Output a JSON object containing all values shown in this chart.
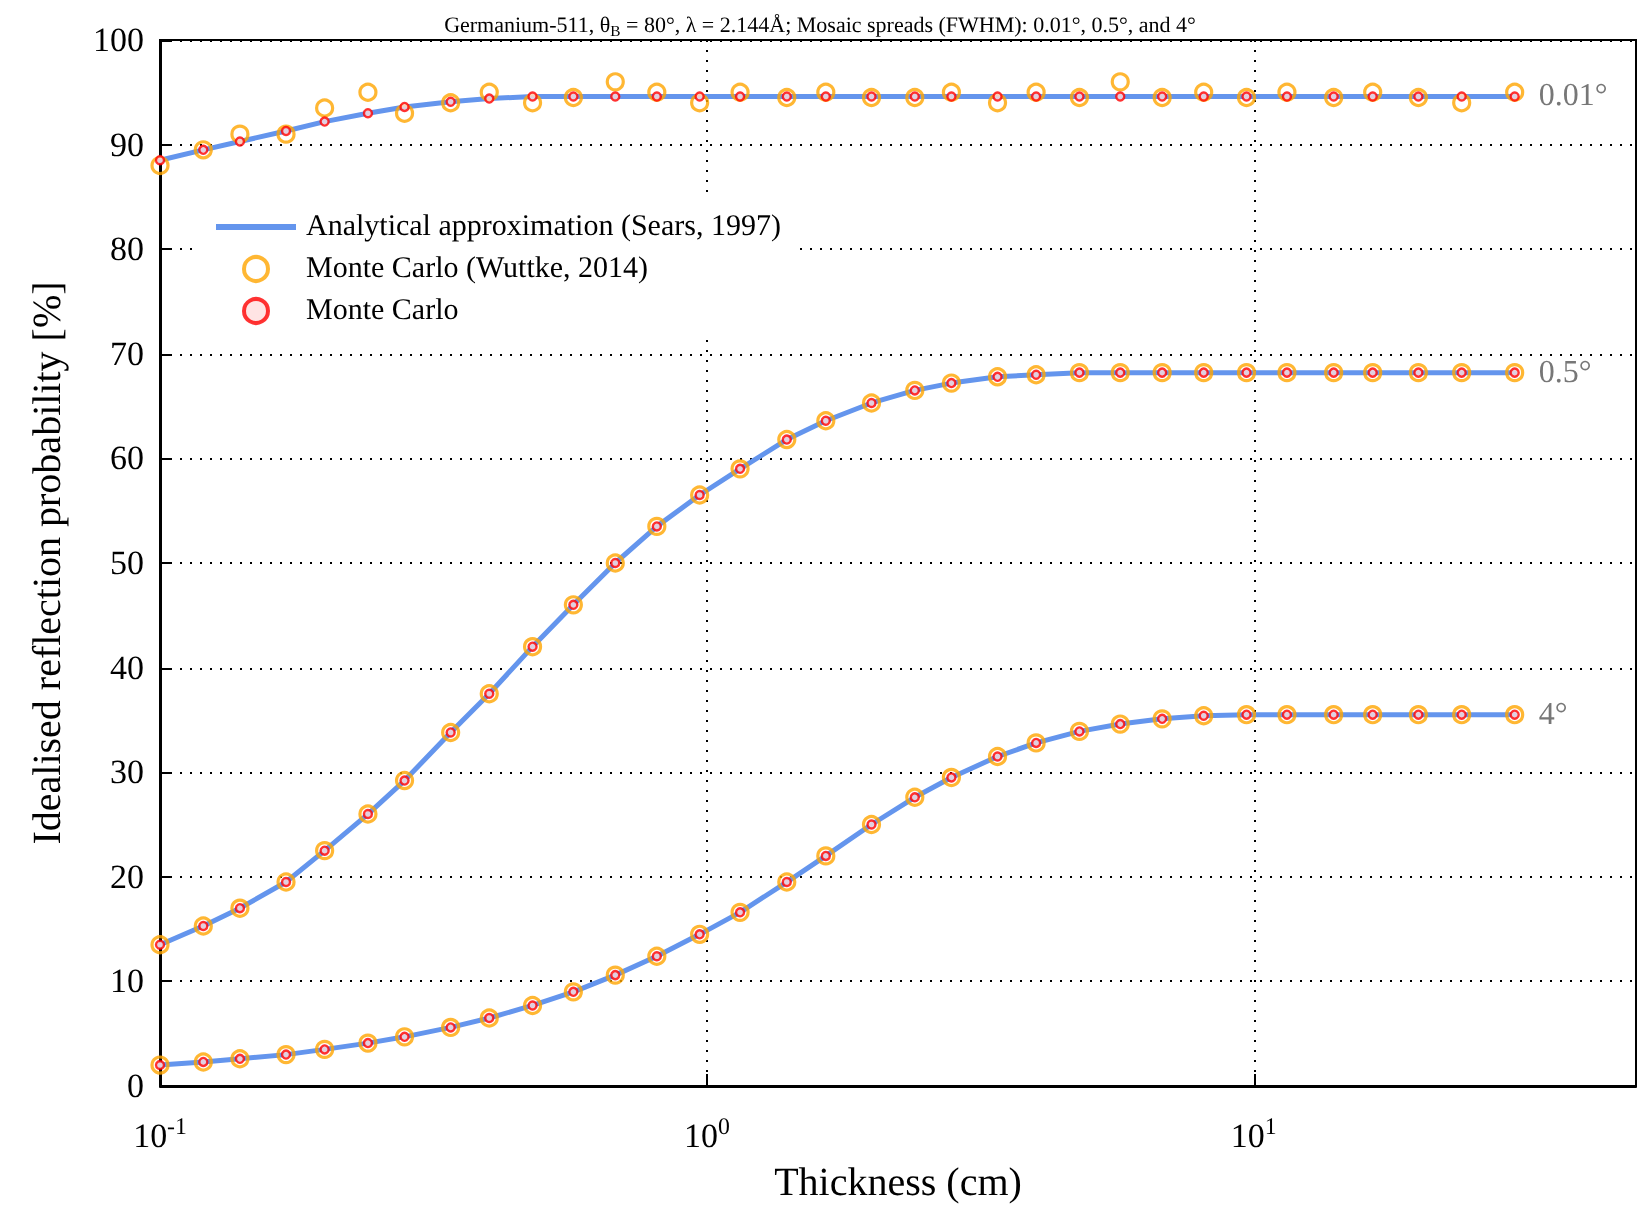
{
  "chart_data": {
    "type": "line",
    "title": "Germanium-511, θ$_{B}$ = 80°, λ = 2.144Å; Mosaic spreads (FWHM): 0.01°, 0.5°, and 4°",
    "xlabel": "Thickness (cm)",
    "ylabel": "Idealised reflection probability [%]",
    "log": "x",
    "xlim": [
      0.1,
      50
    ],
    "xticks": [
      {
        "value": 0.1,
        "label": "10$^{-1}$"
      },
      {
        "value": 1,
        "label": "10$^{0}$"
      },
      {
        "value": 10,
        "label": "10$^{1}$"
      }
    ],
    "ylim": [
      0,
      100
    ],
    "yticks": [
      0,
      10,
      20,
      30,
      40,
      50,
      60,
      70,
      80,
      90,
      100
    ],
    "grid": true,
    "legend": "top left",
    "annotations": [
      "0.01°",
      "0.5°",
      "4°"
    ],
    "series": [
      {
        "name": "Analytical approximation (Sears, 1997)",
        "type": "line",
        "marker": "none",
        "line_style": "solid",
        "color": "#6495ed",
        "x": [
          0.1,
          0.12,
          0.14,
          0.17,
          0.2,
          0.24,
          0.28,
          0.34,
          0.4,
          0.48,
          0.57,
          0.68,
          0.81,
          0.97,
          1.15,
          1.4,
          1.65,
          2,
          2.4,
          2.8,
          3.4,
          4,
          4.8,
          5.7,
          6.8,
          8.1,
          9.7,
          11.5,
          14,
          16.5,
          20,
          24,
          30,
          null,
          0.1,
          0.12,
          0.14,
          0.17,
          0.2,
          0.24,
          0.28,
          0.34,
          0.4,
          0.48,
          0.57,
          0.68,
          0.81,
          0.97,
          1.15,
          1.4,
          1.65,
          2,
          2.4,
          2.8,
          3.4,
          4,
          4.8,
          5.7,
          6.8,
          8.1,
          9.7,
          11.5,
          14,
          16.5,
          20,
          24,
          30,
          null,
          0.1,
          0.12,
          0.14,
          0.17,
          0.2,
          0.24,
          0.28,
          0.34,
          0.4,
          0.48,
          0.57,
          0.68,
          0.81,
          0.97,
          1.15,
          1.4,
          1.65,
          2,
          2.4,
          2.8,
          3.4,
          4,
          4.8,
          5.7,
          6.8,
          8.1,
          9.7,
          11.5,
          14,
          16.5,
          20,
          24,
          30
        ],
        "values": [
          88.5,
          89.5,
          90.3,
          91.3,
          92.2,
          93.0,
          93.6,
          94.1,
          94.4,
          94.6,
          94.6,
          94.6,
          94.6,
          94.6,
          94.6,
          94.6,
          94.6,
          94.6,
          94.6,
          94.6,
          94.6,
          94.6,
          94.6,
          94.6,
          94.6,
          94.6,
          94.6,
          94.6,
          94.6,
          94.6,
          94.6,
          94.6,
          94.6,
          null,
          13.5,
          15.3,
          17.0,
          19.5,
          22.5,
          26,
          29.2,
          33.8,
          37.5,
          42,
          46,
          50,
          53.5,
          56.5,
          59,
          61.8,
          63.6,
          65.3,
          66.5,
          67.2,
          67.8,
          68.0,
          68.2,
          68.2,
          68.2,
          68.2,
          68.2,
          68.2,
          68.2,
          68.2,
          68.2,
          68.2,
          68.2,
          null,
          2.0,
          2.3,
          2.6,
          3.0,
          3.5,
          4.1,
          4.7,
          5.6,
          6.5,
          7.7,
          9.0,
          10.6,
          12.4,
          14.5,
          16.6,
          19.5,
          22.0,
          25.0,
          27.6,
          29.5,
          31.5,
          32.8,
          33.9,
          34.6,
          35.1,
          35.4,
          35.5,
          35.5,
          35.5,
          35.5,
          35.5,
          35.5,
          35.5
        ]
      },
      {
        "name": "Monte Carlo (Wuttke, 2014)",
        "type": "scatter",
        "marker": "circle",
        "color": "#ffa500",
        "x": [
          0.1,
          0.12,
          0.14,
          0.17,
          0.2,
          0.24,
          0.28,
          0.34,
          0.4,
          0.48,
          0.57,
          0.68,
          0.81,
          0.97,
          1.15,
          1.4,
          1.65,
          2,
          2.4,
          2.8,
          3.4,
          4,
          4.8,
          5.7,
          6.8,
          8.1,
          9.7,
          11.5,
          14,
          16.5,
          20,
          24,
          30,
          null,
          0.1,
          0.12,
          0.14,
          0.17,
          0.2,
          0.24,
          0.28,
          0.34,
          0.4,
          0.48,
          0.57,
          0.68,
          0.81,
          0.97,
          1.15,
          1.4,
          1.65,
          2,
          2.4,
          2.8,
          3.4,
          4,
          4.8,
          5.7,
          6.8,
          8.1,
          9.7,
          11.5,
          14,
          16.5,
          20,
          24,
          30,
          null,
          0.1,
          0.12,
          0.14,
          0.17,
          0.2,
          0.24,
          0.28,
          0.34,
          0.4,
          0.48,
          0.57,
          0.68,
          0.81,
          0.97,
          1.15,
          1.4,
          1.65,
          2,
          2.4,
          2.8,
          3.4,
          4,
          4.8,
          5.7,
          6.8,
          8.1,
          9.7,
          11.5,
          14,
          16.5,
          20,
          24,
          30
        ],
        "values": [
          88,
          89.5,
          91,
          91,
          93.5,
          95,
          93,
          94,
          95,
          94,
          94.5,
          96,
          95,
          94,
          95,
          94.5,
          95,
          94.5,
          94.5,
          95,
          94,
          95,
          94.5,
          96,
          94.5,
          95,
          94.5,
          95,
          94.5,
          95,
          94.5,
          94,
          95,
          null,
          13.5,
          15.3,
          17.0,
          19.5,
          22.5,
          26,
          29.2,
          33.8,
          37.5,
          42,
          46,
          50,
          53.5,
          56.5,
          59,
          61.8,
          63.6,
          65.3,
          66.5,
          67.2,
          67.8,
          68.0,
          68.2,
          68.2,
          68.2,
          68.2,
          68.2,
          68.2,
          68.2,
          68.2,
          68.2,
          68.2,
          68.2,
          null,
          2.0,
          2.3,
          2.6,
          3.0,
          3.5,
          4.1,
          4.7,
          5.6,
          6.5,
          7.7,
          9.0,
          10.6,
          12.4,
          14.5,
          16.6,
          19.5,
          22.0,
          25.0,
          27.6,
          29.5,
          31.5,
          32.8,
          33.9,
          34.6,
          35.1,
          35.4,
          35.5,
          35.5,
          35.5,
          35.5,
          35.5,
          35.5,
          35.5
        ]
      },
      {
        "name": "Monte Carlo",
        "type": "scatter",
        "marker": "circle",
        "color": "#ff0000",
        "x": [
          0.1,
          0.12,
          0.14,
          0.17,
          0.2,
          0.24,
          0.28,
          0.34,
          0.4,
          0.48,
          0.57,
          0.68,
          0.81,
          0.97,
          1.15,
          1.4,
          1.65,
          2,
          2.4,
          2.8,
          3.4,
          4,
          4.8,
          5.7,
          6.8,
          8.1,
          9.7,
          11.5,
          14,
          16.5,
          20,
          24,
          30,
          null,
          0.1,
          0.12,
          0.14,
          0.17,
          0.2,
          0.24,
          0.28,
          0.34,
          0.4,
          0.48,
          0.57,
          0.68,
          0.81,
          0.97,
          1.15,
          1.4,
          1.65,
          2,
          2.4,
          2.8,
          3.4,
          4,
          4.8,
          5.7,
          6.8,
          8.1,
          9.7,
          11.5,
          14,
          16.5,
          20,
          24,
          30,
          null,
          0.1,
          0.12,
          0.14,
          0.17,
          0.2,
          0.24,
          0.28,
          0.34,
          0.4,
          0.48,
          0.57,
          0.68,
          0.81,
          0.97,
          1.15,
          1.4,
          1.65,
          2,
          2.4,
          2.8,
          3.4,
          4,
          4.8,
          5.7,
          6.8,
          8.1,
          9.7,
          11.5,
          14,
          16.5,
          20,
          24,
          30
        ],
        "values": [
          88.5,
          89.5,
          90.3,
          91.3,
          92.2,
          93.0,
          93.6,
          94.1,
          94.4,
          94.6,
          94.6,
          94.6,
          94.6,
          94.6,
          94.6,
          94.6,
          94.6,
          94.6,
          94.6,
          94.6,
          94.6,
          94.6,
          94.6,
          94.6,
          94.6,
          94.6,
          94.6,
          94.6,
          94.6,
          94.6,
          94.6,
          94.6,
          94.6,
          null,
          13.5,
          15.3,
          17.0,
          19.5,
          22.5,
          26,
          29.2,
          33.8,
          37.5,
          42,
          46,
          50,
          53.5,
          56.5,
          59,
          61.8,
          63.6,
          65.3,
          66.5,
          67.2,
          67.8,
          68.0,
          68.2,
          68.2,
          68.2,
          68.2,
          68.2,
          68.2,
          68.2,
          68.2,
          68.2,
          68.2,
          68.2,
          null,
          2.0,
          2.3,
          2.6,
          3.0,
          3.5,
          4.1,
          4.7,
          5.6,
          6.5,
          7.7,
          9.0,
          10.6,
          12.4,
          14.5,
          16.6,
          19.5,
          22.0,
          25.0,
          27.6,
          29.5,
          31.5,
          32.8,
          33.9,
          34.6,
          35.1,
          35.4,
          35.5,
          35.5,
          35.5,
          35.5,
          35.5,
          35.5,
          35.5
        ]
      }
    ]
  }
}
